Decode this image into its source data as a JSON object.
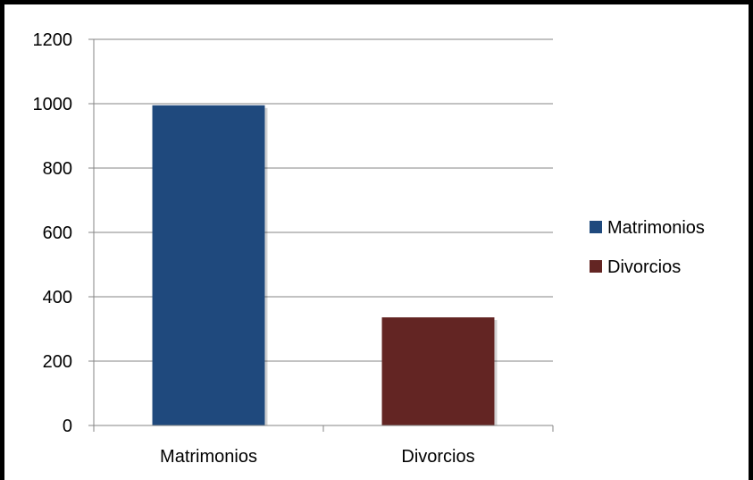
{
  "chart_data": {
    "type": "bar",
    "title": "",
    "xlabel": "",
    "ylabel": "",
    "categories": [
      "Matrimonios",
      "Divorcios"
    ],
    "series": [
      {
        "name": "Matrimonios",
        "values": [
          995,
          null
        ],
        "color": "#1F497D"
      },
      {
        "name": "Divorcios",
        "values": [
          null,
          336
        ],
        "color": "#632523"
      }
    ],
    "ylim": [
      0,
      1200
    ],
    "yticks": [
      0,
      200,
      400,
      600,
      800,
      1000,
      1200
    ],
    "ytick_labels": [
      "0",
      "200",
      "400",
      "600",
      "800",
      "1000",
      "1200"
    ],
    "grid": true,
    "legend": "right"
  }
}
